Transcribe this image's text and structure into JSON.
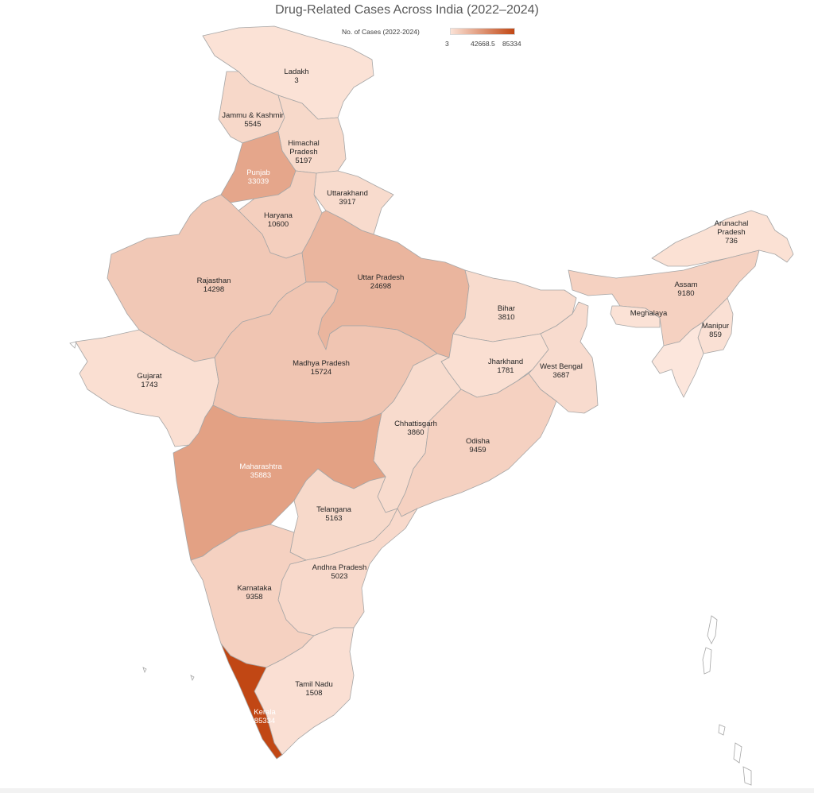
{
  "title": "Drug-Related Cases Across India (2022–2024)",
  "legend": {
    "title": "No. of Cases (2022-2024)",
    "min_label": "3",
    "mid_label": "42668.5",
    "max_label": "85334",
    "min": 3,
    "max": 85334
  },
  "colors": {
    "scale_low": "#fbe2d6",
    "scale_high": "#c14714",
    "border": "#a6a6a6",
    "label_dark": "#262626",
    "label_light": "#ffffff"
  },
  "states": [
    {
      "id": "ladakh",
      "name": "Ladakh",
      "cases": 3
    },
    {
      "id": "jammu-kashmir",
      "name": "Jammu & Kashmir",
      "cases": 5545
    },
    {
      "id": "himachal-pradesh",
      "name": "Himachal\nPradesh",
      "cases": 5197
    },
    {
      "id": "punjab",
      "name": "Punjab",
      "cases": 33039
    },
    {
      "id": "uttarakhand",
      "name": "Uttarakhand",
      "cases": 3917
    },
    {
      "id": "haryana",
      "name": "Haryana",
      "cases": 10600
    },
    {
      "id": "rajasthan",
      "name": "Rajasthan",
      "cases": 14298
    },
    {
      "id": "uttar-pradesh",
      "name": "Uttar Pradesh",
      "cases": 24698
    },
    {
      "id": "gujarat",
      "name": "Gujarat",
      "cases": 1743
    },
    {
      "id": "madhya-pradesh",
      "name": "Madhya Pradesh",
      "cases": 15724
    },
    {
      "id": "bihar",
      "name": "Bihar",
      "cases": 3810
    },
    {
      "id": "jharkhand",
      "name": "Jharkhand",
      "cases": 1781
    },
    {
      "id": "west-bengal",
      "name": "West Bengal",
      "cases": 3687
    },
    {
      "id": "chhattisgarh",
      "name": "Chhattisgarh",
      "cases": 3860
    },
    {
      "id": "odisha",
      "name": "Odisha",
      "cases": 9459
    },
    {
      "id": "maharashtra",
      "name": "Maharashtra",
      "cases": 35883
    },
    {
      "id": "telangana",
      "name": "Telangana",
      "cases": 5163
    },
    {
      "id": "andhra-pradesh",
      "name": "Andhra Pradesh",
      "cases": 5023
    },
    {
      "id": "karnataka",
      "name": "Karnataka",
      "cases": 9358
    },
    {
      "id": "tamil-nadu",
      "name": "Tamil Nadu",
      "cases": 1508
    },
    {
      "id": "kerala",
      "name": "Kerala",
      "cases": 85334
    },
    {
      "id": "arunachal-pradesh",
      "name": "Arunachal\nPradesh",
      "cases": 736
    },
    {
      "id": "assam",
      "name": "Assam",
      "cases": 9180
    },
    {
      "id": "meghalaya",
      "name": "Meghalaya",
      "cases": null
    },
    {
      "id": "manipur",
      "name": "Manipur",
      "cases": 859
    }
  ]
}
